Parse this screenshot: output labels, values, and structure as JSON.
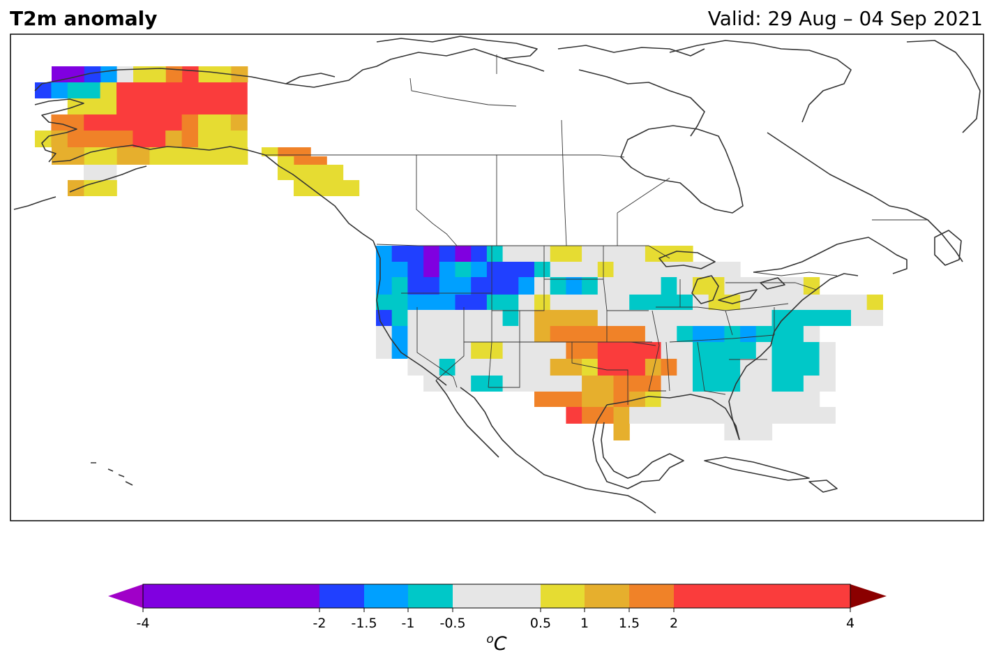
{
  "header": {
    "title": "T2m anomaly",
    "valid": "Valid: 29 Aug – 04 Sep 2021"
  },
  "colorbar": {
    "unit_sup": "o",
    "unit": "C",
    "ticks": [
      {
        "value": -4,
        "label": "-4"
      },
      {
        "value": -2,
        "label": "-2"
      },
      {
        "value": -1.5,
        "label": "-1.5"
      },
      {
        "value": -1,
        "label": "-1"
      },
      {
        "value": -0.5,
        "label": "-0.5"
      },
      {
        "value": 0.5,
        "label": "0.5"
      },
      {
        "value": 1,
        "label": "1"
      },
      {
        "value": 1.5,
        "label": "1.5"
      },
      {
        "value": 2,
        "label": "2"
      },
      {
        "value": 4,
        "label": "4"
      }
    ],
    "bins": [
      {
        "from": -4,
        "to": -2,
        "color": "#8000e0"
      },
      {
        "from": -2,
        "to": -1.5,
        "color": "#2040ff"
      },
      {
        "from": -1.5,
        "to": -1,
        "color": "#00a0ff"
      },
      {
        "from": -1,
        "to": -0.5,
        "color": "#00c8c8"
      },
      {
        "from": -0.5,
        "to": 0.5,
        "color": "#e6e6e6"
      },
      {
        "from": 0.5,
        "to": 1,
        "color": "#e6dc32"
      },
      {
        "from": 1,
        "to": 1.5,
        "color": "#e6af2d"
      },
      {
        "from": 1.5,
        "to": 2,
        "color": "#f08228"
      },
      {
        "from": 2,
        "to": 4,
        "color": "#fa3c3c"
      }
    ],
    "under_color": "#a000c8",
    "over_color": "#8b0000"
  }
}
